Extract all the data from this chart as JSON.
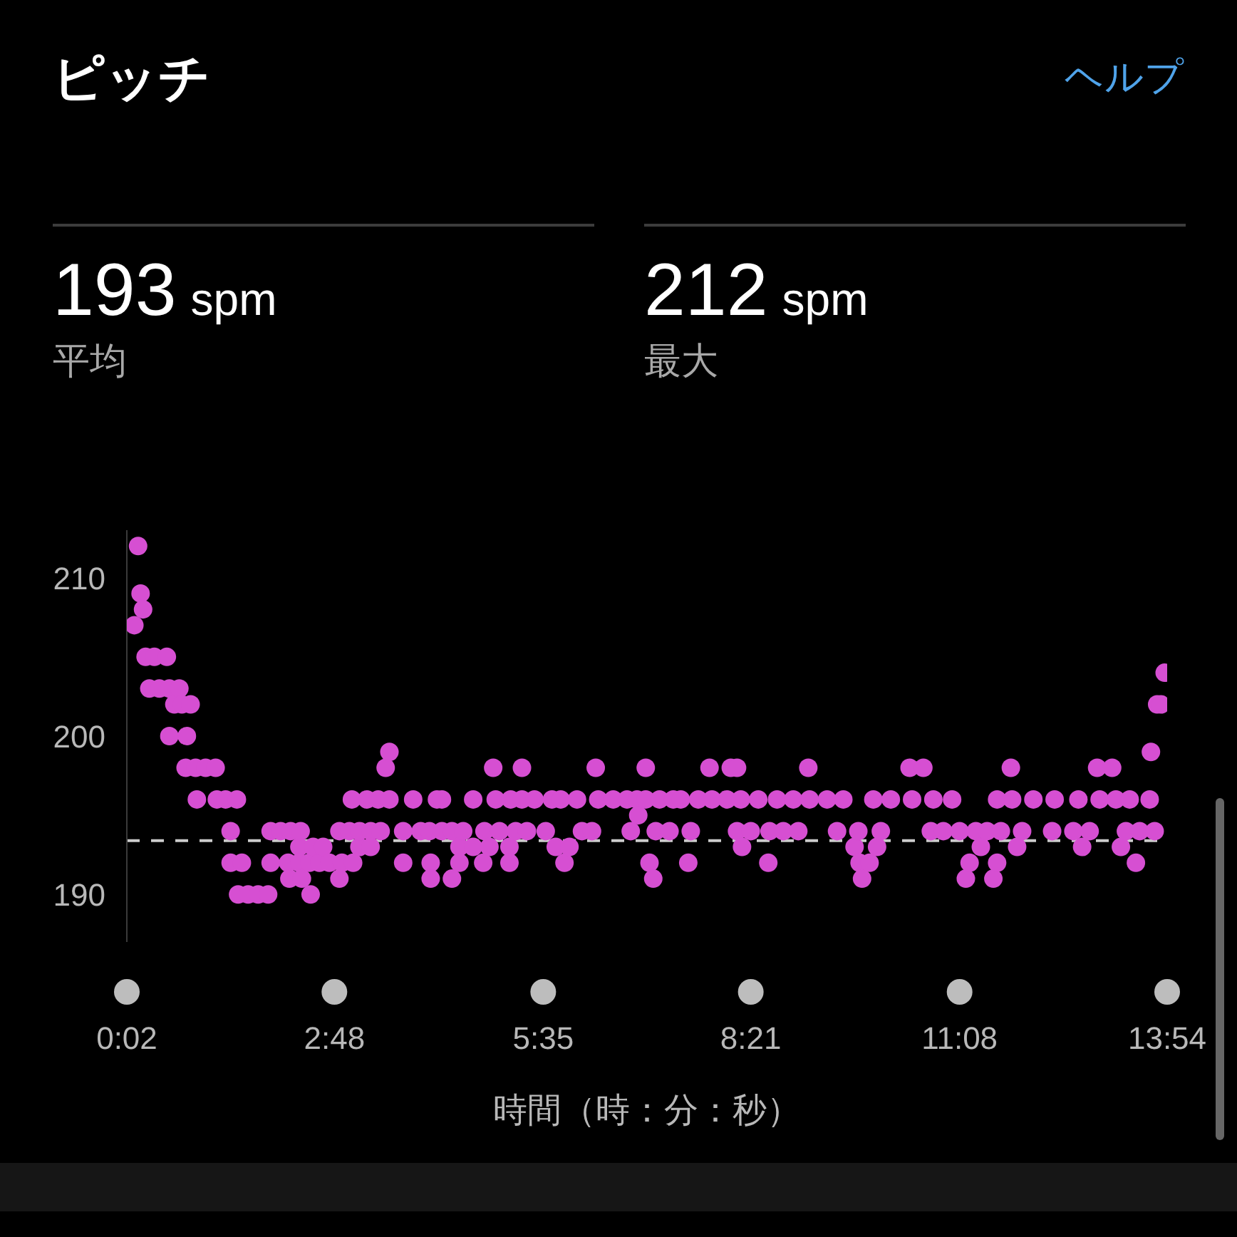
{
  "chart_data": {
    "type": "scatter",
    "title": "ピッチ",
    "xlabel": "時間（時：分：秒）",
    "annotations": [
      "ヘルプ",
      "193 spm",
      "平均",
      "212 spm",
      "最大"
    ],
    "x": [
      8,
      11,
      13,
      15,
      17,
      20,
      24,
      28,
      34,
      36,
      36,
      40,
      44,
      46,
      49,
      50,
      53,
      57,
      58,
      65,
      73,
      74,
      81,
      85,
      85,
      90,
      91,
      94,
      99,
      107,
      115,
      117,
      117,
      125,
      131,
      132,
      133,
      140,
      140,
      141,
      142,
      148,
      149,
      151,
      156,
      159,
      164,
      172,
      172,
      174,
      180,
      182,
      183,
      188,
      188,
      194,
      197,
      197,
      203,
      205,
      209,
      212,
      212,
      223,
      223,
      231,
      237,
      244,
      245,
      245,
      250,
      254,
      254,
      262,
      262,
      268,
      268,
      271,
      279,
      279,
      287,
      288,
      292,
      295,
      297,
      300,
      308,
      308,
      309,
      313,
      318,
      318,
      322,
      328,
      337,
      342,
      345,
      349,
      352,
      356,
      362,
      366,
      374,
      377,
      379,
      391,
      402,
      405,
      410,
      411,
      417,
      417,
      420,
      423,
      425,
      428,
      436,
      439,
      445,
      451,
      453,
      459,
      468,
      470,
      482,
      485,
      490,
      490,
      493,
      494,
      501,
      507,
      515,
      516,
      522,
      527,
      535,
      539,
      547,
      548,
      562,
      570,
      575,
      584,
      587,
      588,
      590,
      596,
      599,
      602,
      605,
      613,
      628,
      630,
      639,
      645,
      647,
      655,
      662,
      668,
      673,
      676,
      681,
      685,
      690,
      695,
      698,
      698,
      701,
      709,
      710,
      714,
      718,
      727,
      742,
      744,
      759,
      763,
      766,
      772,
      778,
      780,
      790,
      793,
      797,
      801,
      804,
      809,
      812,
      820,
      821,
      824,
      826,
      829,
      832
    ],
    "values": [
      207,
      212,
      209,
      208,
      205,
      203,
      205,
      203,
      205,
      203,
      200,
      202,
      203,
      202,
      198,
      200,
      202,
      198,
      196,
      198,
      198,
      196,
      196,
      194,
      192,
      196,
      190,
      192,
      190,
      190,
      190,
      194,
      192,
      194,
      192,
      191,
      194,
      193,
      192,
      194,
      191,
      192,
      190,
      193,
      192,
      193,
      192,
      194,
      191,
      192,
      194,
      196,
      192,
      193,
      194,
      196,
      194,
      193,
      196,
      194,
      198,
      199,
      196,
      194,
      192,
      196,
      194,
      194,
      192,
      191,
      196,
      196,
      194,
      191,
      194,
      193,
      192,
      194,
      196,
      193,
      192,
      194,
      193,
      198,
      196,
      194,
      193,
      192,
      196,
      194,
      198,
      196,
      194,
      196,
      194,
      196,
      193,
      196,
      192,
      193,
      196,
      194,
      194,
      198,
      196,
      196,
      196,
      194,
      196,
      195,
      198,
      196,
      192,
      191,
      194,
      196,
      194,
      196,
      196,
      192,
      194,
      196,
      198,
      196,
      196,
      198,
      198,
      194,
      196,
      193,
      194,
      196,
      192,
      194,
      196,
      194,
      196,
      194,
      198,
      196,
      196,
      194,
      196,
      193,
      194,
      192,
      191,
      192,
      196,
      193,
      194,
      196,
      198,
      196,
      198,
      194,
      196,
      194,
      196,
      194,
      191,
      192,
      194,
      193,
      194,
      191,
      192,
      196,
      194,
      198,
      196,
      193,
      194,
      196,
      194,
      196,
      194,
      196,
      193,
      194,
      198,
      196,
      198,
      196,
      193,
      194,
      196,
      192,
      194,
      196,
      199,
      194,
      202,
      202,
      204
    ],
    "color": "#d64fd2",
    "marker": "circle",
    "xlim": [
      2,
      834
    ],
    "xticks": [
      {
        "value": 2,
        "label": "0:02"
      },
      {
        "value": 168,
        "label": "2:48"
      },
      {
        "value": 335,
        "label": "5:35"
      },
      {
        "value": 501,
        "label": "8:21"
      },
      {
        "value": 668,
        "label": "11:08"
      },
      {
        "value": 834,
        "label": "13:54"
      }
    ],
    "ylim": [
      187,
      213
    ],
    "yticks": [
      190,
      200,
      210
    ],
    "ref_lines": [
      {
        "axis": "y",
        "value": 193.4,
        "color": "#cccccc",
        "line_style": "dashed"
      }
    ]
  }
}
